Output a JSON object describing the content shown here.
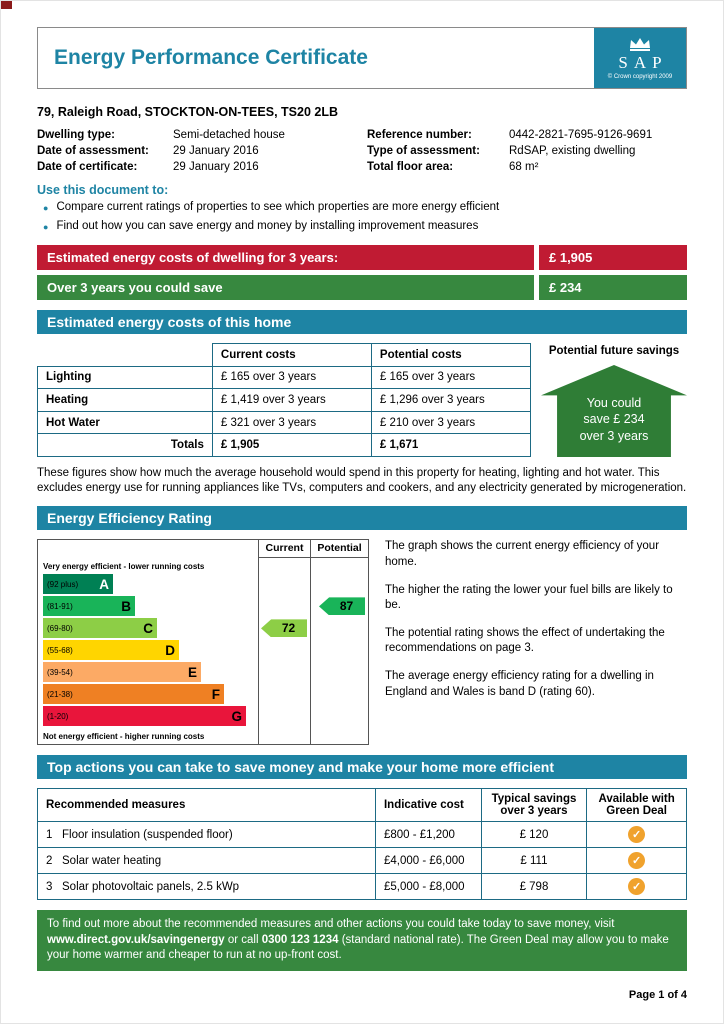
{
  "page": {
    "footer": "Page 1 of 4"
  },
  "icons": {
    "bullet": "●",
    "check": "✓"
  },
  "colors": {
    "teal": "#1e84a4",
    "red_banner": "#c01b33",
    "green_banner": "#37883f",
    "arrow_green": "#2f7d36",
    "check_orange": "#f0a22d"
  },
  "header": {
    "title": "Energy Performance Certificate",
    "logo_letters": "SAP",
    "logo_copyright": "© Crown copyright 2009"
  },
  "address": "79, Raleigh Road, STOCKTON-ON-TEES, TS20 2LB",
  "details": {
    "left": [
      {
        "label": "Dwelling type:",
        "value": "Semi-detached house"
      },
      {
        "label": "Date of assessment:",
        "value": "29 January 2016"
      },
      {
        "label": "Date of certificate:",
        "value": "29 January 2016"
      }
    ],
    "right": [
      {
        "label": "Reference number:",
        "value": "0442-2821-7695-9126-9691"
      },
      {
        "label": "Type of assessment:",
        "value": "RdSAP, existing dwelling"
      },
      {
        "label": "Total floor area:",
        "value": "68 m²"
      }
    ]
  },
  "use_document": {
    "heading": "Use this document to:",
    "bullets": [
      "Compare current ratings of properties to see which properties are more energy efficient",
      "Find out how you can save energy and money by installing improvement measures"
    ]
  },
  "banners": {
    "costs": {
      "label": "Estimated energy costs of dwelling for 3 years:",
      "value": "£ 1,905"
    },
    "save": {
      "label": "Over 3 years you could save",
      "value": "£ 234"
    }
  },
  "costs_section": {
    "title": "Estimated energy costs of this home",
    "col_current": "Current costs",
    "col_potential": "Potential costs",
    "col_savings": "Potential future savings",
    "rows": [
      {
        "label": "Lighting",
        "current": "£ 165 over 3 years",
        "potential": "£ 165 over 3 years"
      },
      {
        "label": "Heating",
        "current": "£ 1,419 over 3 years",
        "potential": "£ 1,296 over 3 years"
      },
      {
        "label": "Hot Water",
        "current": "£ 321 over 3 years",
        "potential": "£ 210 over 3 years"
      }
    ],
    "totals_label": "Totals",
    "totals_current": "£ 1,905",
    "totals_potential": "£ 1,671",
    "savings_arrow": [
      "You could",
      "save £ 234",
      "over 3 years"
    ],
    "note": "These figures show how much the average household would spend in this property for heating, lighting and hot water. This excludes energy use for running appliances like TVs, computers and cookers, and any electricity generated by microgeneration."
  },
  "rating_section": {
    "title": "Energy Efficiency Rating",
    "top_label": "Very energy efficient - lower running costs",
    "bottom_label": "Not energy efficient - higher running costs",
    "col_current": "Current",
    "col_potential": "Potential",
    "bands": [
      {
        "range": "(92 plus)",
        "letter": "A",
        "color": "#008054"
      },
      {
        "range": "(81-91)",
        "letter": "B",
        "color": "#19b459"
      },
      {
        "range": "(69-80)",
        "letter": "C",
        "color": "#8dce46"
      },
      {
        "range": "(55-68)",
        "letter": "D",
        "color": "#ffd500"
      },
      {
        "range": "(39-54)",
        "letter": "E",
        "color": "#fcaa65"
      },
      {
        "range": "(21-38)",
        "letter": "F",
        "color": "#ef8023"
      },
      {
        "range": "(1-20)",
        "letter": "G",
        "color": "#e9153b"
      }
    ],
    "current_value": "72",
    "current_band_index": 2,
    "current_color": "#8dce46",
    "potential_value": "87",
    "potential_band_index": 1,
    "potential_color": "#19b459",
    "paragraphs": [
      "The graph shows the current energy efficiency of your home.",
      "The higher the rating the lower your fuel bills are likely to be.",
      "The potential rating shows the effect of undertaking the recommendations on page 3.",
      "The average energy efficiency rating for a dwelling in England and Wales is band D (rating 60)."
    ]
  },
  "actions_section": {
    "title": "Top actions you can take to save money and make your home more efficient",
    "headers": [
      "Recommended measures",
      "Indicative cost",
      "Typical savings over 3 years",
      "Available with Green Deal"
    ],
    "rows": [
      {
        "num": "1",
        "measure": "Floor insulation (suspended floor)",
        "cost": "£800 - £1,200",
        "savings": "£ 120"
      },
      {
        "num": "2",
        "measure": "Solar water heating",
        "cost": "£4,000 - £6,000",
        "savings": "£ 111"
      },
      {
        "num": "3",
        "measure": "Solar photovoltaic panels, 2.5 kWp",
        "cost": "£5,000 - £8,000",
        "savings": "£ 798"
      }
    ]
  },
  "footer_box": {
    "seg1": "To find out more about the recommended measures and other actions you could take today to save money, visit ",
    "seg2": "www.direct.gov.uk/savingenergy",
    "seg3": " or call ",
    "seg4": "0300 123 1234",
    "seg5": " (standard national rate). The Green Deal may allow you to make your home warmer and cheaper to run at no up-front cost."
  }
}
